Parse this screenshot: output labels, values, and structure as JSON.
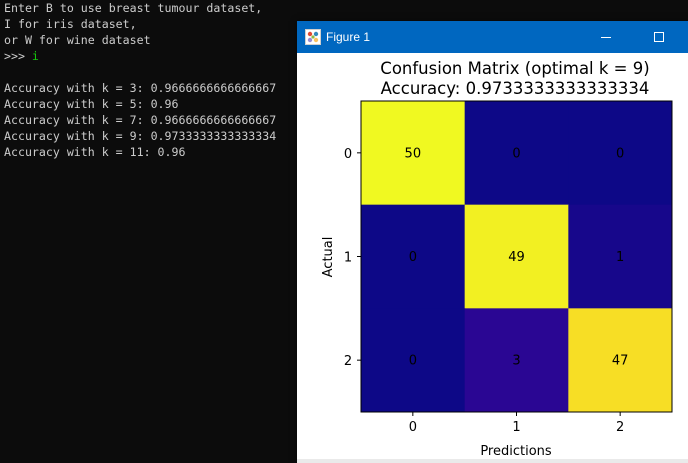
{
  "console": {
    "lines": [
      "Enter B to use breast tumour dataset,",
      "I for iris dataset,",
      "or W for wine dataset",
      ">>> ",
      "",
      "Accuracy with k = 3: 0.9666666666666667",
      "Accuracy with k = 5: 0.96",
      "Accuracy with k = 7: 0.9666666666666667",
      "Accuracy with k = 9: 0.9733333333333334",
      "Accuracy with k = 11: 0.96"
    ],
    "prompt_input": "i"
  },
  "figure_window": {
    "title": "Figure 1",
    "icons": [
      "figure-app-icon",
      "minimize-icon",
      "maximize-icon"
    ]
  },
  "chart_data": {
    "type": "heatmap",
    "title": "Confusion Matrix (optimal k = 9)",
    "subtitle": "Accuracy: 0.9733333333333334",
    "xlabel": "Predictions",
    "ylabel": "Actual",
    "x_categories": [
      "0",
      "1",
      "2"
    ],
    "y_categories": [
      "0",
      "1",
      "2"
    ],
    "matrix": [
      [
        50,
        0,
        0
      ],
      [
        0,
        49,
        1
      ],
      [
        0,
        3,
        47
      ]
    ],
    "colormap": "plasma",
    "value_range": [
      0,
      50
    ],
    "grid": false,
    "legend": "none"
  }
}
